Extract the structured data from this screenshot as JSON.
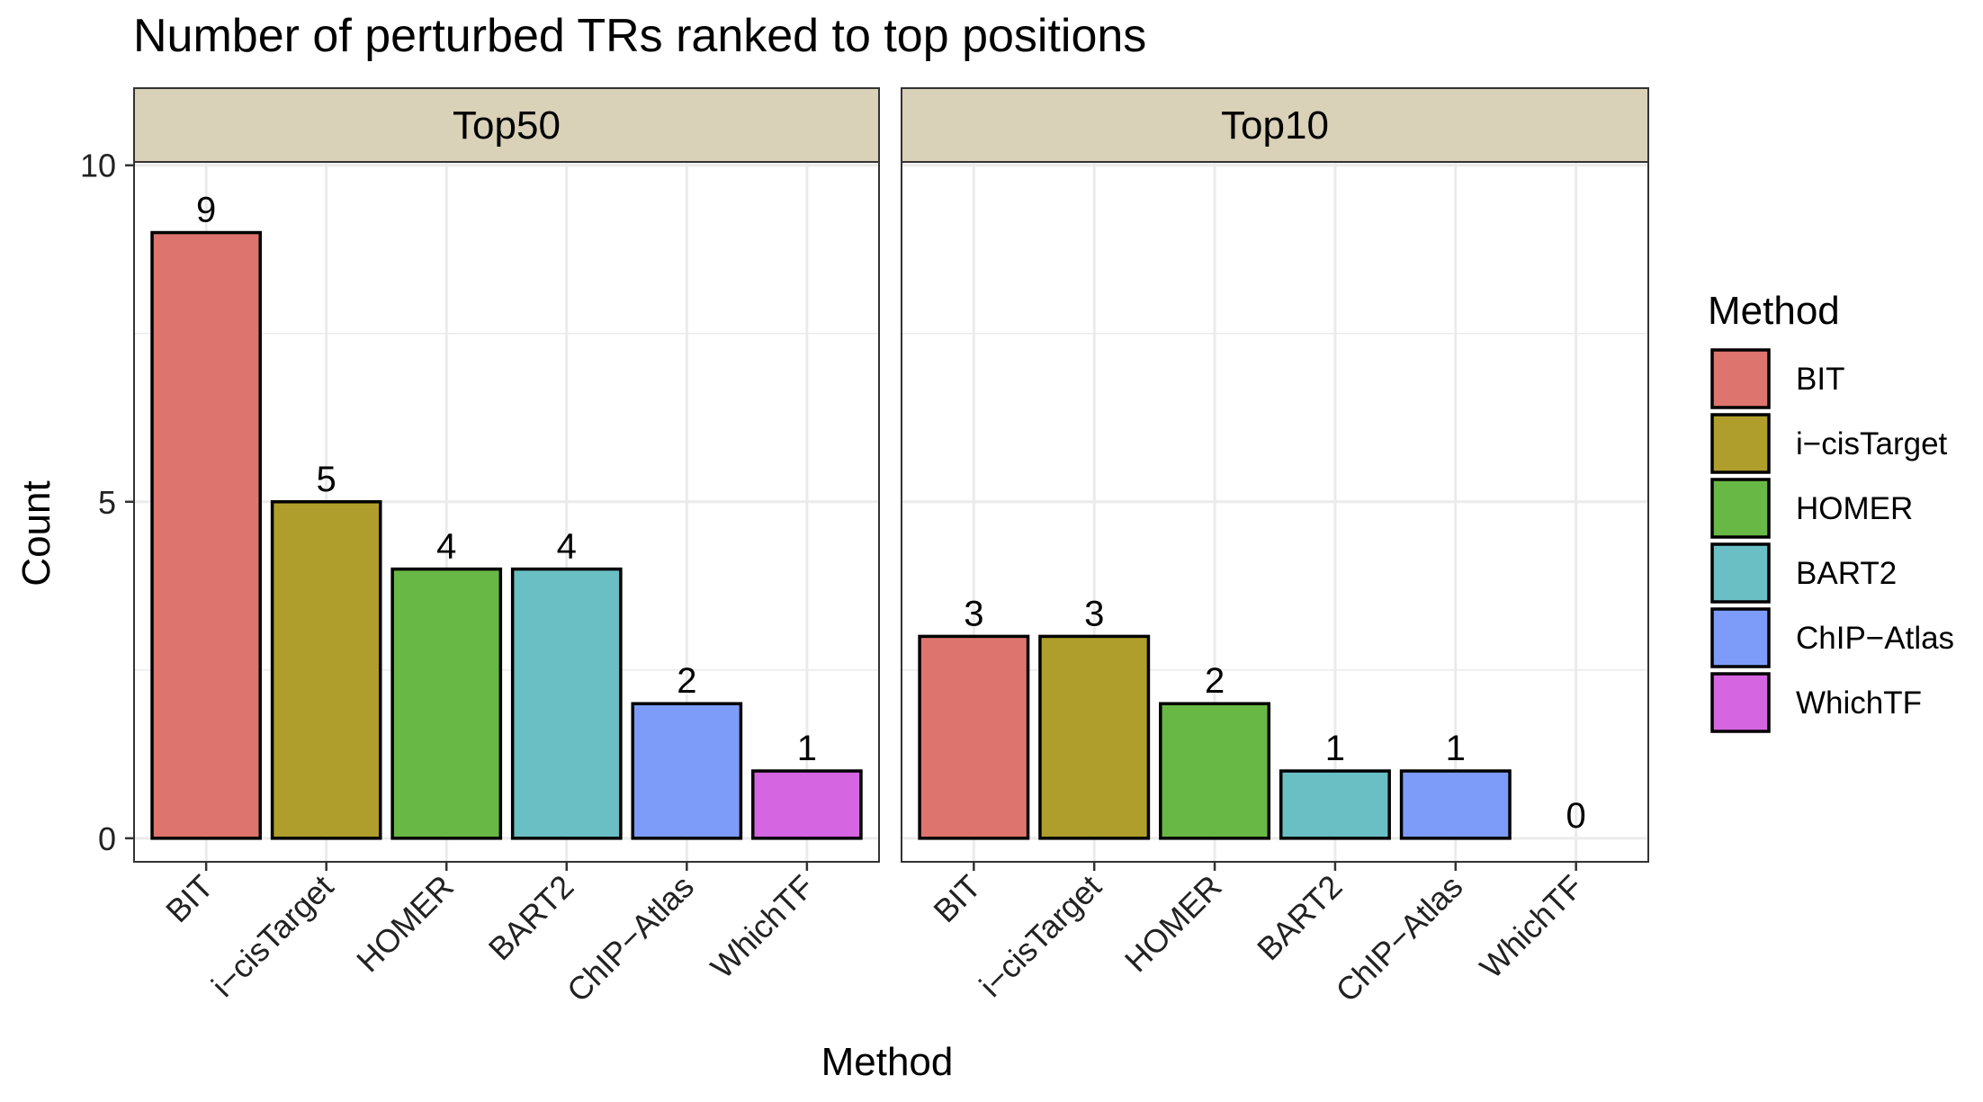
{
  "chart_data": {
    "type": "bar",
    "title": "Number of perturbed TRs ranked to top positions",
    "xlabel": "Method",
    "ylabel": "Count",
    "ylim": [
      -0.35,
      10.05
    ],
    "yticks": [
      0,
      5,
      10
    ],
    "grid": true,
    "legend": {
      "title": "Method",
      "position": "right",
      "entries": [
        {
          "label": "BIT",
          "color": "#DD756E"
        },
        {
          "label": "i−cisTarget",
          "color": "#AF9E2B"
        },
        {
          "label": "HOMER",
          "color": "#68B845"
        },
        {
          "label": "BART2",
          "color": "#6ABFC4"
        },
        {
          "label": "ChIP−Atlas",
          "color": "#7D9CFA"
        },
        {
          "label": "WhichTF",
          "color": "#D565E0"
        }
      ]
    },
    "categories": [
      "BIT",
      "i−cisTarget",
      "HOMER",
      "BART2",
      "ChIP−Atlas",
      "WhichTF"
    ],
    "panels": [
      {
        "name": "Top50",
        "values": [
          9,
          5,
          4,
          4,
          2,
          1
        ]
      },
      {
        "name": "Top10",
        "values": [
          3,
          3,
          2,
          1,
          1,
          0
        ]
      }
    ],
    "colors": {
      "strip_fill": "#D9D1B8",
      "gridline": "#EBEBEB",
      "panel_border": "#333333",
      "bar_outline": "#000000"
    }
  }
}
